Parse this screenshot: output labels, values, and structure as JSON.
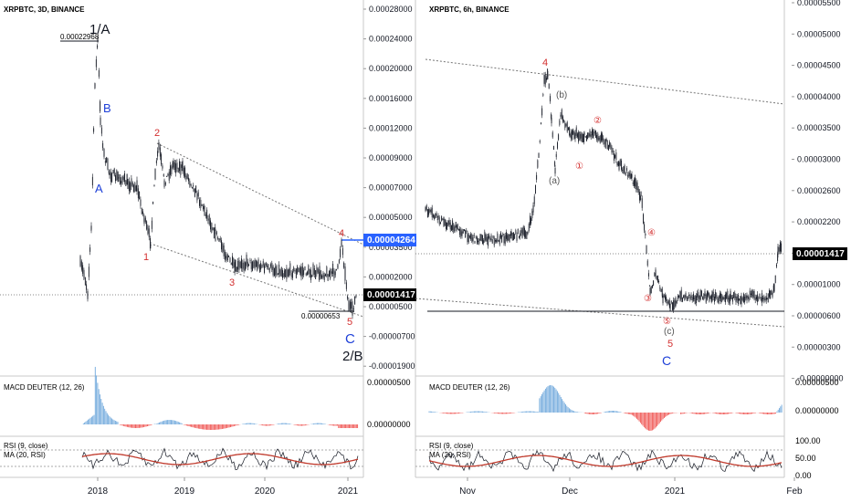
{
  "colors": {
    "candle": "#131722",
    "macd_up": "#6fa8dc",
    "macd_down": "#ef5350",
    "rsi": "#131722",
    "rsi_ma": "#c0392b",
    "wave_red": "#d32f2f",
    "wave_blue": "#1e40d8",
    "wave_black": "#131722",
    "wave_gray": "#555555",
    "price_tag_black": "#000000",
    "price_tag_blue": "#2962ff",
    "grid": "#e6e6e6"
  },
  "left_panel": {
    "title": "XRPBTC, 3D, BINANCE",
    "price_axis": [
      "0.00028000",
      "0.00024000",
      "0.00020000",
      "0.00016000",
      "0.00012000",
      "0.00009000",
      "0.00007000",
      "0.00005000",
      "0.00003500",
      "0.00002000",
      "0.00000500",
      "-0.00000700",
      "-0.00001900"
    ],
    "time_axis": [
      "2018",
      "2019",
      "2020",
      "2021"
    ],
    "price_tags": {
      "current": "0.00001417",
      "target": "0.00004264"
    },
    "annotations": {
      "high": "0.00022968",
      "low": "0.00000653"
    },
    "wave_labels": {
      "w1a": "1/A",
      "wB": "B",
      "wA": "A",
      "w1": "1",
      "w2": "2",
      "w3": "3",
      "w4": "4",
      "w5": "5",
      "wC": "C",
      "w2b": "2/B"
    },
    "macd": {
      "label": "MACD DEUTER (12, 26)",
      "axis": [
        "0.00000500",
        "0.00000000"
      ]
    },
    "rsi": {
      "label1": "RSI (9, close)",
      "label2": "MA (20, RSI)"
    }
  },
  "right_panel": {
    "title": "XRPBTC, 6h, BINANCE",
    "price_axis": [
      "0.00005500",
      "0.00005000",
      "0.00004500",
      "0.00004000",
      "0.00003500",
      "0.00003000",
      "0.00002600",
      "0.00002200",
      "0.00001800",
      "0.00001000",
      "0.00000600",
      "0.00000300",
      "-0.00000000"
    ],
    "time_axis": [
      "Nov",
      "Dec",
      "2021",
      "Feb"
    ],
    "price_tags": {
      "current": "0.00001417"
    },
    "wave_labels": {
      "w4": "4",
      "wb": "(b)",
      "wa": "(a)",
      "c1": "①",
      "c2": "②",
      "c3": "③",
      "c4": "④",
      "c5": "⑤",
      "wc": "(c)",
      "w5": "5",
      "wC": "C"
    },
    "macd": {
      "label": "MACD DEUTER (12, 26)",
      "axis": [
        "0.00000500",
        "0.00000000"
      ]
    },
    "rsi": {
      "label1": "RSI (9, close)",
      "label2": "MA (20, RSI)",
      "axis": [
        "100.00",
        "50.00",
        "0.00"
      ]
    }
  },
  "chart_data": [
    {
      "type": "candlestick",
      "title": "XRPBTC, 3D, BINANCE",
      "x_ticks": [
        "2018",
        "2019",
        "2020",
        "2021"
      ],
      "y_ticks": [
        0.00028,
        0.00024,
        0.0002,
        0.00016,
        0.00012,
        9e-05,
        7e-05,
        5e-05,
        3.5e-05,
        2e-05,
        5e-06,
        -7e-06,
        -1.9e-05
      ],
      "y_scale": "log-like (non-uniform ticks)",
      "close_path": [
        {
          "x": "2017-11",
          "y": 2.4e-05
        },
        {
          "x": "2017-12",
          "y": 4.4e-05
        },
        {
          "x": "2018-01",
          "y": 0.000229
        },
        {
          "x": "2018-01",
          "y": 0.000135
        },
        {
          "x": "2018-02",
          "y": 8.5e-05
        },
        {
          "x": "2018-03",
          "y": 9e-05
        },
        {
          "x": "2018-05",
          "y": 7.5e-05
        },
        {
          "x": "2018-07",
          "y": 5.2e-05
        },
        {
          "x": "2018-08",
          "y": 4.3e-05
        },
        {
          "x": "2018-09",
          "y": 0.000125
        },
        {
          "x": "2018-10",
          "y": 8.5e-05
        },
        {
          "x": "2018-11",
          "y": 9.5e-05
        },
        {
          "x": "2019-01",
          "y": 9e-05
        },
        {
          "x": "2019-03",
          "y": 7e-05
        },
        {
          "x": "2019-05",
          "y": 4e-05
        },
        {
          "x": "2019-07",
          "y": 3.4e-05
        },
        {
          "x": "2019-09",
          "y": 3e-05
        },
        {
          "x": "2019-11",
          "y": 2.8e-05
        },
        {
          "x": "2020-02",
          "y": 2.7e-05
        },
        {
          "x": "2020-04",
          "y": 2.7e-05
        },
        {
          "x": "2020-06",
          "y": 2.5e-05
        },
        {
          "x": "2020-09",
          "y": 2.4e-05
        },
        {
          "x": "2020-11",
          "y": 4.2e-05
        },
        {
          "x": "2020-12",
          "y": 6.5e-06
        },
        {
          "x": "2021-01",
          "y": 1.417e-05
        }
      ],
      "markers": {
        "high": 0.00022968,
        "low": 6.53e-06,
        "current": 1.417e-05,
        "target": 4.264e-05
      }
    },
    {
      "type": "candlestick",
      "title": "XRPBTC, 6h, BINANCE",
      "x_ticks": [
        "Nov",
        "Dec",
        "2021",
        "Feb"
      ],
      "y_ticks": [
        5.5e-05,
        5e-05,
        4.5e-05,
        4e-05,
        3.5e-05,
        3e-05,
        2.6e-05,
        2.2e-05,
        1.8e-05,
        1e-05,
        6e-06,
        3e-06,
        0
      ],
      "close_path": [
        {
          "x": "Oct-20",
          "y": 2.1e-05
        },
        {
          "x": "Oct-28",
          "y": 1.9e-05
        },
        {
          "x": "Nov-05",
          "y": 1.7e-05
        },
        {
          "x": "Nov-15",
          "y": 1.7e-05
        },
        {
          "x": "Nov-21",
          "y": 1.8e-05
        },
        {
          "x": "Nov-24",
          "y": 4.1e-05
        },
        {
          "x": "Nov-27",
          "y": 3.1e-05
        },
        {
          "x": "Dec-02",
          "y": 3.4e-05
        },
        {
          "x": "Dec-08",
          "y": 3.1e-05
        },
        {
          "x": "Dec-12",
          "y": 2.9e-05
        },
        {
          "x": "Dec-16",
          "y": 2.2e-05
        },
        {
          "x": "Dec-20",
          "y": 1.3e-05
        },
        {
          "x": "Dec-23",
          "y": 7e-06
        },
        {
          "x": "Dec-29",
          "y": 6.5e-06
        },
        {
          "x": "Jan-10",
          "y": 8e-06
        },
        {
          "x": "Jan-25",
          "y": 8.5e-06
        },
        {
          "x": "Jan-30",
          "y": 9e-06
        },
        {
          "x": "Feb-01",
          "y": 1.417e-05
        }
      ],
      "markers": {
        "current": 1.417e-05
      }
    }
  ]
}
